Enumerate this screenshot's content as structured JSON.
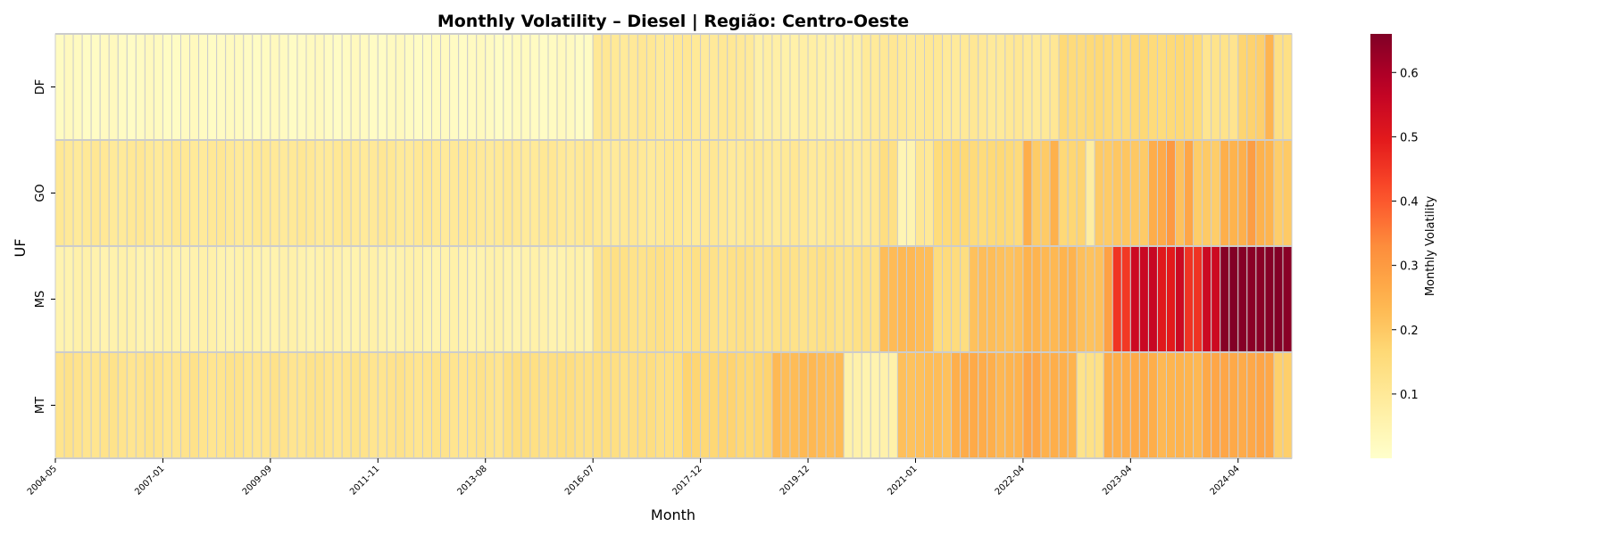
{
  "chart_data": {
    "type": "heatmap",
    "title": "Monthly Volatility – Diesel | Região: Centro-Oeste",
    "xlabel": "Month",
    "ylabel": "UF",
    "colorbar_label": "Monthly Volatility",
    "colormap": "YlOrRd",
    "vmin": 0.0,
    "vmax": 0.66,
    "colorbar_ticks": [
      "0.1",
      "0.2",
      "0.3",
      "0.4",
      "0.5",
      "0.6"
    ],
    "gridline_color": "#cccccc",
    "rows": [
      "DF",
      "GO",
      "MS",
      "MT"
    ],
    "x_tick_labels": [
      "2004-05",
      "2007-01",
      "2009-09",
      "2011-11",
      "2013-08",
      "2016-07",
      "2017-12",
      "2019-12",
      "2021-01",
      "2022-04",
      "2023-04",
      "2024-04"
    ],
    "columns_count": 138,
    "segments": {
      "DF": [
        [
          0,
          60,
          0.02
        ],
        [
          60,
          78,
          0.1
        ],
        [
          78,
          90,
          0.07
        ],
        [
          90,
          112,
          0.1
        ],
        [
          112,
          128,
          0.16
        ],
        [
          128,
          132,
          0.12
        ],
        [
          132,
          135,
          0.18
        ],
        [
          135,
          136,
          0.24
        ],
        [
          136,
          138,
          0.14
        ]
      ],
      "GO": [
        [
          0,
          92,
          0.1
        ],
        [
          92,
          94,
          0.14
        ],
        [
          94,
          96,
          0.05
        ],
        [
          96,
          98,
          0.1
        ],
        [
          98,
          108,
          0.16
        ],
        [
          108,
          109,
          0.26
        ],
        [
          109,
          111,
          0.19
        ],
        [
          111,
          112,
          0.25
        ],
        [
          112,
          115,
          0.17
        ],
        [
          115,
          116,
          0.08
        ],
        [
          116,
          122,
          0.2
        ],
        [
          122,
          124,
          0.26
        ],
        [
          124,
          125,
          0.3
        ],
        [
          125,
          126,
          0.22
        ],
        [
          126,
          127,
          0.28
        ],
        [
          127,
          130,
          0.19
        ],
        [
          130,
          131,
          0.26
        ],
        [
          131,
          133,
          0.25
        ],
        [
          133,
          134,
          0.29
        ],
        [
          134,
          136,
          0.25
        ],
        [
          136,
          138,
          0.19
        ]
      ],
      "MS": [
        [
          0,
          60,
          0.06
        ],
        [
          60,
          92,
          0.13
        ],
        [
          92,
          98,
          0.23
        ],
        [
          98,
          102,
          0.15
        ],
        [
          102,
          108,
          0.22
        ],
        [
          108,
          114,
          0.24
        ],
        [
          114,
          117,
          0.22
        ],
        [
          117,
          118,
          0.28
        ],
        [
          118,
          120,
          0.45
        ],
        [
          120,
          123,
          0.55
        ],
        [
          123,
          125,
          0.5
        ],
        [
          125,
          126,
          0.55
        ],
        [
          126,
          128,
          0.45
        ],
        [
          128,
          130,
          0.55
        ],
        [
          130,
          138,
          0.65
        ]
      ],
      "MT": [
        [
          0,
          50,
          0.12
        ],
        [
          50,
          70,
          0.14
        ],
        [
          70,
          80,
          0.17
        ],
        [
          80,
          88,
          0.23
        ],
        [
          88,
          94,
          0.06
        ],
        [
          94,
          100,
          0.22
        ],
        [
          100,
          105,
          0.26
        ],
        [
          105,
          108,
          0.24
        ],
        [
          108,
          110,
          0.28
        ],
        [
          110,
          114,
          0.25
        ],
        [
          114,
          117,
          0.13
        ],
        [
          117,
          123,
          0.26
        ],
        [
          123,
          128,
          0.24
        ],
        [
          128,
          136,
          0.27
        ],
        [
          136,
          138,
          0.19
        ]
      ]
    }
  }
}
